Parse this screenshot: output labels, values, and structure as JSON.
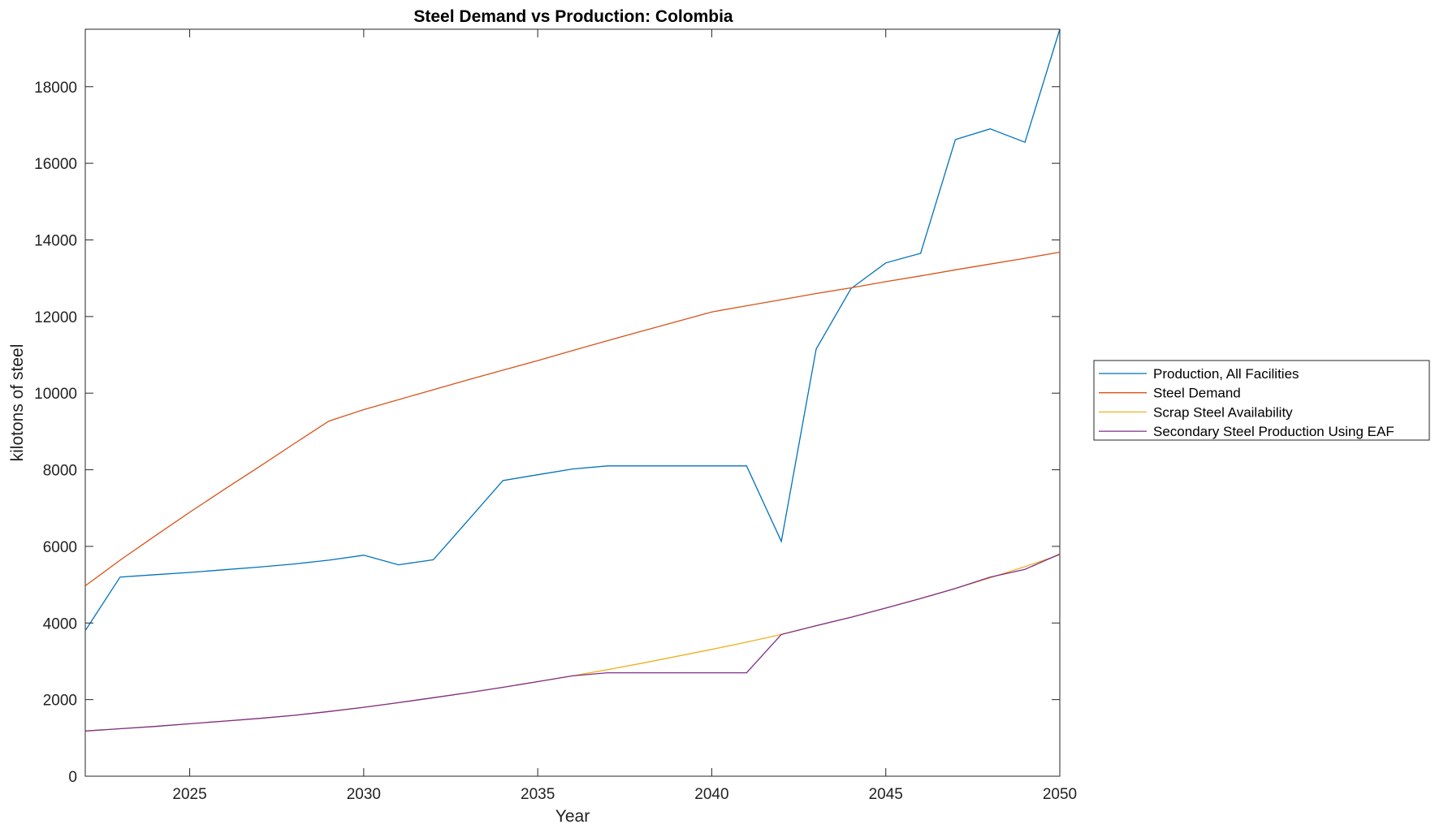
{
  "chart_data": {
    "type": "line",
    "title": "Steel Demand vs Production: Colombia",
    "xlabel": "Year",
    "ylabel": "kilotons of steel",
    "xlim": [
      2022,
      2050
    ],
    "ylim": [
      0,
      19500
    ],
    "xticks": [
      2025,
      2030,
      2035,
      2040,
      2045,
      2050
    ],
    "yticks": [
      0,
      2000,
      4000,
      6000,
      8000,
      10000,
      12000,
      14000,
      16000,
      18000
    ],
    "grid": false,
    "legend_position": "outside-right",
    "x": [
      2022,
      2023,
      2024,
      2025,
      2026,
      2027,
      2028,
      2029,
      2030,
      2031,
      2032,
      2033,
      2034,
      2035,
      2036,
      2037,
      2038,
      2039,
      2040,
      2041,
      2042,
      2043,
      2044,
      2045,
      2046,
      2047,
      2048,
      2049,
      2050
    ],
    "series": [
      {
        "name": "Production, All Facilities",
        "color": "#0072BD",
        "values": [
          3800,
          5200,
          5260,
          5320,
          5390,
          5460,
          5540,
          5640,
          5770,
          5520,
          5650,
          6680,
          7720,
          7870,
          8020,
          8100,
          8100,
          8100,
          8100,
          8100,
          6130,
          11150,
          12730,
          13400,
          13650,
          16620,
          16900,
          16550,
          19500
        ]
      },
      {
        "name": "Steel Demand",
        "color": "#D95319",
        "values": [
          4970,
          5640,
          6270,
          6890,
          7490,
          8080,
          8680,
          9270,
          9570,
          9830,
          10090,
          10350,
          10600,
          10850,
          11110,
          11370,
          11620,
          11870,
          12120,
          12280,
          12440,
          12600,
          12750,
          12910,
          13060,
          13220,
          13370,
          13520,
          13680
        ]
      },
      {
        "name": "Scrap Steel Availability",
        "color": "#EDB120",
        "values": [
          1180,
          1240,
          1300,
          1370,
          1440,
          1510,
          1590,
          1690,
          1800,
          1920,
          2050,
          2180,
          2320,
          2470,
          2620,
          2780,
          2950,
          3130,
          3310,
          3500,
          3700,
          3930,
          4150,
          4390,
          4640,
          4900,
          5180,
          5470,
          5780
        ]
      },
      {
        "name": "Secondary Steel Production Using EAF",
        "color": "#7E2F8E",
        "values": [
          1180,
          1240,
          1300,
          1370,
          1440,
          1510,
          1590,
          1690,
          1800,
          1920,
          2050,
          2180,
          2320,
          2470,
          2620,
          2700,
          2700,
          2700,
          2700,
          2700,
          3700,
          3930,
          4150,
          4390,
          4640,
          4900,
          5200,
          5400,
          5800
        ]
      }
    ]
  }
}
